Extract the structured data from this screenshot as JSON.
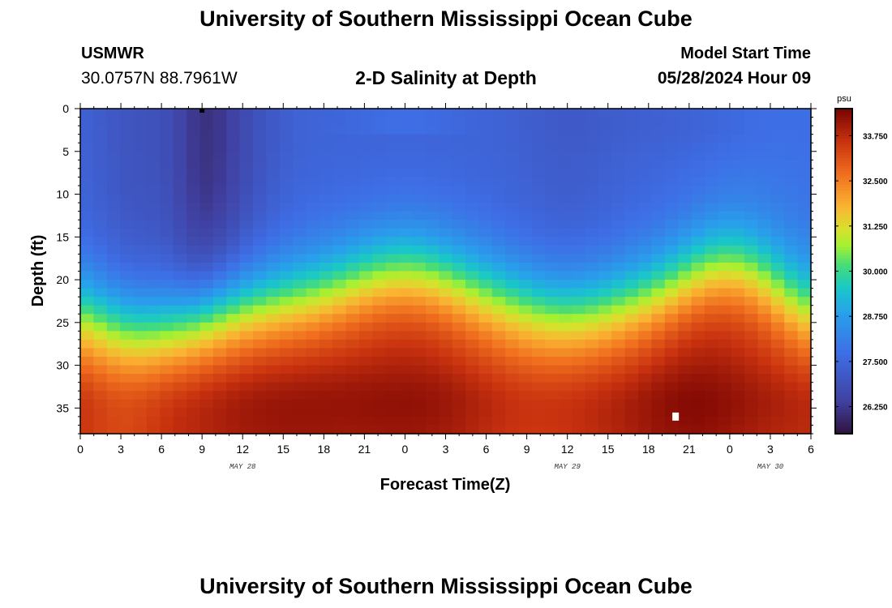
{
  "header": {
    "title": "University of Southern Mississippi Ocean Cube",
    "station": "USMWR",
    "coords": "30.0757N  88.7961W",
    "subtitle": "2-D Salinity at Depth",
    "model_label": "Model Start Time",
    "model_time": "05/28/2024 Hour 09"
  },
  "footer": {
    "title": "University of Southern Mississippi Ocean Cube"
  },
  "chart_data": {
    "type": "heatmap",
    "title": "2-D Salinity at Depth",
    "xlabel": "Forecast Time(Z)",
    "ylabel": "Depth (ft)",
    "x_range_hours": [
      0,
      54
    ],
    "y_range_ft": [
      0,
      38
    ],
    "x_tick_labels": [
      "0",
      "3",
      "6",
      "9",
      "12",
      "15",
      "18",
      "21",
      "0",
      "3",
      "6",
      "9",
      "12",
      "15",
      "18",
      "21",
      "0",
      "3",
      "6"
    ],
    "y_ticks": [
      0,
      5,
      10,
      15,
      20,
      25,
      30,
      35
    ],
    "date_labels": [
      {
        "text": "MAY 28",
        "hour": 12
      },
      {
        "text": "MAY 29",
        "hour": 36
      },
      {
        "text": "MAY 30",
        "hour": 51
      }
    ],
    "colorbar": {
      "unit": "psu",
      "min": 25.5,
      "max": 34.5,
      "tick_values": [
        26.25,
        27.5,
        28.75,
        30.0,
        31.25,
        32.5,
        33.75
      ],
      "tick_labels": [
        "26.250",
        "27.500",
        "28.750",
        "30.000",
        "31.250",
        "32.500",
        "33.750"
      ]
    },
    "grid_resolution": {
      "time_steps": 55,
      "depth_steps": 38
    },
    "field_notes": "Surface ~26.5-27.5 psu (freshest near hour 9), bottom ~33.5-34.2 psu; halocline dips to ~26 ft near hours 3-8 and ~21 ft near hours 33-38, rises to ~19 ft near hour 24 and ~18 ft near hour 48.",
    "markers": [
      {
        "label": "surface",
        "hour": 9,
        "depth": 0
      },
      {
        "label": "bottom",
        "hour": 44,
        "depth": 36
      }
    ]
  }
}
